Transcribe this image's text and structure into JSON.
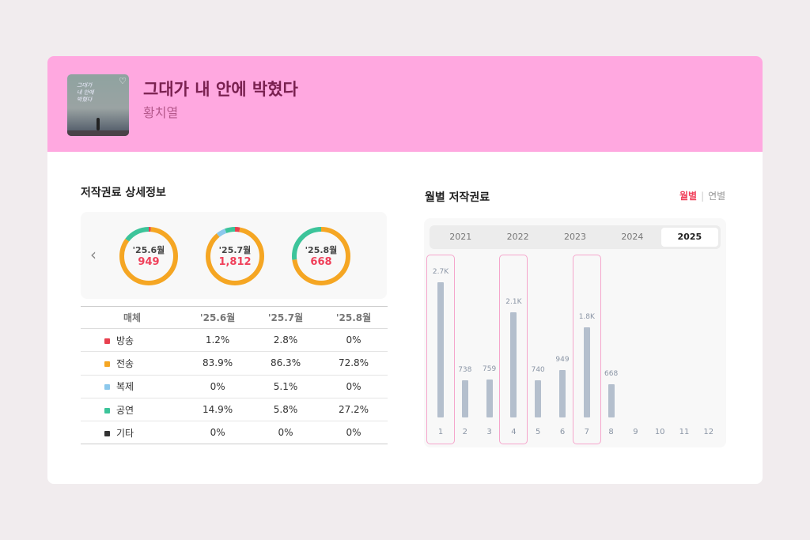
{
  "song": {
    "title": "그대가 내 안에 박혔다",
    "artist": "황치열",
    "cover_text": "그대가 내 안에 박혔다",
    "heart_icon": "♡"
  },
  "details": {
    "title": "저작권료 상세정보",
    "prev_icon": "‹",
    "donuts": [
      {
        "month": "'25.6월",
        "value": "949",
        "shares": [
          1.2,
          83.9,
          0,
          14.9,
          0
        ]
      },
      {
        "month": "'25.7월",
        "value": "1,812",
        "shares": [
          2.8,
          86.3,
          5.1,
          5.8,
          0
        ]
      },
      {
        "month": "'25.8월",
        "value": "668",
        "shares": [
          0,
          72.8,
          0,
          27.2,
          0
        ]
      }
    ],
    "table": {
      "headers": [
        "매체",
        "'25.6월",
        "'25.7월",
        "'25.8월"
      ],
      "rows": [
        {
          "media": "방송",
          "color": "#e8404f",
          "values": [
            "1.2%",
            "2.8%",
            "0%"
          ]
        },
        {
          "media": "전송",
          "color": "#f5a623",
          "values": [
            "83.9%",
            "86.3%",
            "72.8%"
          ]
        },
        {
          "media": "복제",
          "color": "#8cc8ec",
          "values": [
            "0%",
            "5.1%",
            "0%"
          ]
        },
        {
          "media": "공연",
          "color": "#3cc49a",
          "values": [
            "14.9%",
            "5.8%",
            "27.2%"
          ]
        },
        {
          "media": "기타",
          "color": "#333333",
          "values": [
            "0%",
            "0%",
            "0%"
          ]
        }
      ]
    }
  },
  "monthly": {
    "title": "월별 저작권료",
    "toggle": {
      "active": "월별",
      "inactive": "연별"
    },
    "years": [
      "2021",
      "2022",
      "2023",
      "2024",
      "2025"
    ],
    "selected_year": "2025"
  },
  "chart_data": {
    "type": "bar",
    "title": "월별 저작권료",
    "categories": [
      "1",
      "2",
      "3",
      "4",
      "5",
      "6",
      "7",
      "8",
      "9",
      "10",
      "11",
      "12"
    ],
    "values": [
      2700,
      738,
      759,
      2100,
      740,
      949,
      1800,
      668,
      null,
      null,
      null,
      null
    ],
    "labels": [
      "2.7K",
      "738",
      "759",
      "2.1K",
      "740",
      "949",
      "1.8K",
      "668",
      "",
      "",
      "",
      ""
    ],
    "highlighted": [
      "1",
      "4",
      "7"
    ]
  }
}
